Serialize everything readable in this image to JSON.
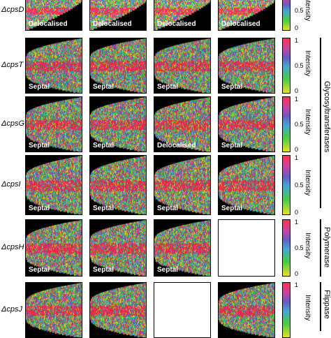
{
  "rows": [
    {
      "label": "ΔcpsD",
      "panels": [
        "Delocalised",
        "Delocalised",
        "Delocalised",
        "Delocalised"
      ],
      "ticks": [
        "0.5",
        "0"
      ],
      "intensity": "Intensity"
    },
    {
      "label": "ΔcpsT",
      "panels": [
        "Septal",
        "Septal",
        "Septal",
        "Septal"
      ],
      "ticks": [
        "1",
        "0.5",
        "0"
      ],
      "intensity": "Intensity"
    },
    {
      "label": "ΔcpsG",
      "panels": [
        "Septal",
        "Septal",
        "Delocalised",
        "Septal"
      ],
      "ticks": [
        "1",
        "0.5",
        "0"
      ],
      "intensity": "Intensity"
    },
    {
      "label": "ΔcpsI",
      "panels": [
        "Septal",
        "Septal",
        "Septal",
        "Septal"
      ],
      "ticks": [
        "1",
        "0.5",
        "0"
      ],
      "intensity": "Intensity"
    },
    {
      "label": "ΔcpsH",
      "panels": [
        "Septal",
        "Septal",
        "Septal",
        null
      ],
      "ticks": [
        "1",
        "0.5",
        "0"
      ],
      "intensity": "Intensity"
    },
    {
      "label": "ΔcpsJ",
      "panels": [
        "",
        "",
        null,
        ""
      ],
      "ticks": [
        "1"
      ],
      "intensity": "Intensity"
    }
  ],
  "groups": [
    "Glycosyltransferases",
    "Polymerase",
    "Flippase"
  ]
}
